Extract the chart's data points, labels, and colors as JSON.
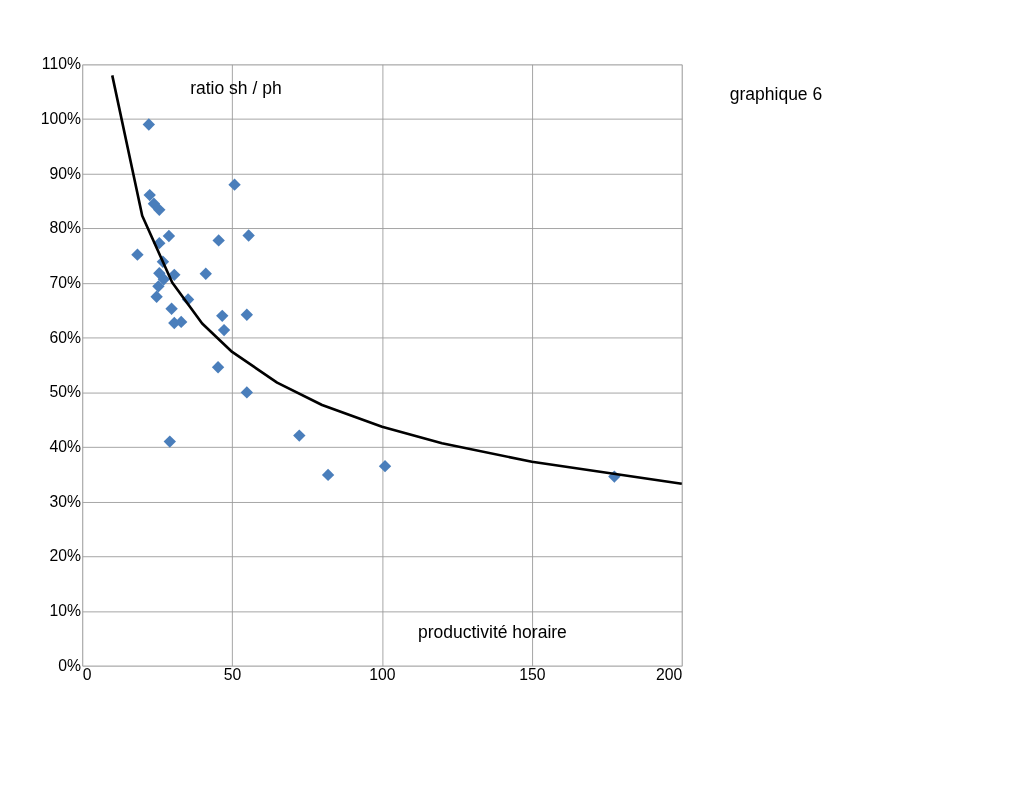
{
  "chart_data": {
    "type": "scatter",
    "annotations": [
      "ratio sh / ph",
      "productivité horaire",
      "graphique 6"
    ],
    "xlim": [
      0,
      200
    ],
    "xticks": [
      0,
      50,
      100,
      150,
      200
    ],
    "ylim": [
      0,
      1.1
    ],
    "yticks": [
      {
        "value": 0,
        "label": "0%"
      },
      {
        "value": 0.1,
        "label": "10%"
      },
      {
        "value": 0.2,
        "label": "20%"
      },
      {
        "value": 0.3,
        "label": "30%"
      },
      {
        "value": 0.4,
        "label": "40%"
      },
      {
        "value": 0.5,
        "label": "50%"
      },
      {
        "value": 0.6,
        "label": "60%"
      },
      {
        "value": 0.7,
        "label": "70%"
      },
      {
        "value": 0.8,
        "label": "80%"
      },
      {
        "value": 0.9,
        "label": "90%"
      },
      {
        "value": 1.0,
        "label": "100%"
      },
      {
        "value": 1.1,
        "label": "110%"
      }
    ],
    "grid": true,
    "legend": false,
    "series": [
      {
        "color": "#4a7ebb",
        "marker": "diamond",
        "x": [
          22.2,
          22.5,
          23.9,
          25.7,
          28.9,
          25.7,
          18.4,
          26.9,
          25.7,
          30.7,
          27.2,
          25.4,
          24.8,
          29.8,
          30.7,
          33.0,
          35.3,
          41.2,
          45.5,
          50.8,
          55.5,
          46.7,
          47.3,
          54.9,
          45.3,
          54.9,
          29.2,
          72.4,
          82.0,
          101.0,
          177.5
        ],
        "values": [
          0.99,
          0.861,
          0.845,
          0.834,
          0.786,
          0.773,
          0.752,
          0.739,
          0.718,
          0.715,
          0.707,
          0.694,
          0.675,
          0.653,
          0.627,
          0.629,
          0.67,
          0.717,
          0.778,
          0.88,
          0.787,
          0.64,
          0.614,
          0.642,
          0.546,
          0.5,
          0.41,
          0.421,
          0.349,
          0.365,
          0.346
        ]
      },
      {
        "type": "line",
        "color": "#000000",
        "marker": "none",
        "x": [
          10,
          20,
          30,
          40,
          50,
          65,
          80,
          100,
          120,
          150,
          200
        ],
        "values": [
          1.08,
          0.823,
          0.701,
          0.626,
          0.574,
          0.518,
          0.477,
          0.437,
          0.407,
          0.373,
          0.333
        ]
      }
    ]
  }
}
